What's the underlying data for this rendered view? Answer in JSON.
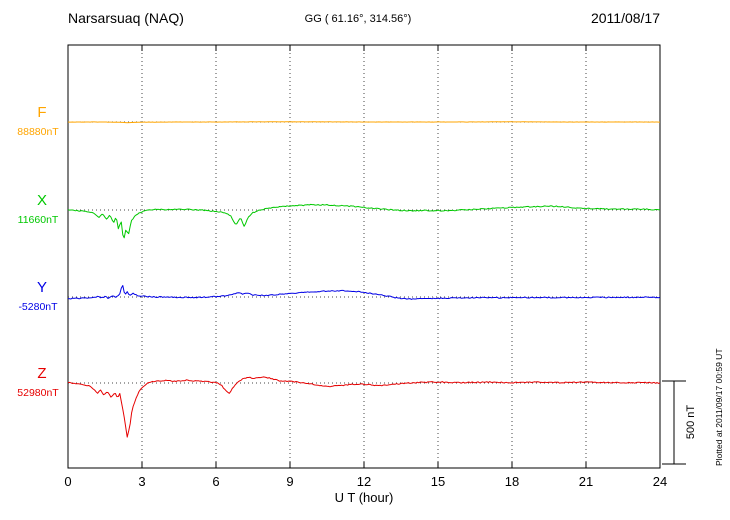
{
  "header": {
    "station": "Narsarsuaq (NAQ)",
    "coords": "GG ( 61.16°, 314.56°)",
    "date": "2011/08/17"
  },
  "footer": {
    "xlabel": "U T (hour)"
  },
  "side": {
    "scale_label": "500 nT",
    "plotted_note": "Plotted at 2011/09/17 00:59 UT"
  },
  "chart_data": {
    "type": "line",
    "title": "Narsarsuaq (NAQ) magnetogram 2011/08/17",
    "xlabel": "U T (hour)",
    "xlim": [
      0,
      24
    ],
    "x_ticks": [
      0,
      3,
      6,
      9,
      12,
      15,
      18,
      21,
      24
    ],
    "grid": "dotted vertical lines every 3 h; dotted horizontal baseline per component",
    "scale_bar_nT": 500,
    "legend_position": "left baselines",
    "series": [
      {
        "letter": "F",
        "value_label": "88880nT",
        "baseline_nT": 88880,
        "color": "#FFA500",
        "jitter_nT": 0.6,
        "points": [
          [
            0,
            0
          ],
          [
            1,
            0
          ],
          [
            2,
            -1
          ],
          [
            2.4,
            -4
          ],
          [
            3,
            -1
          ],
          [
            4,
            0
          ],
          [
            6,
            0
          ],
          [
            8,
            1
          ],
          [
            10,
            1
          ],
          [
            12,
            0
          ],
          [
            14,
            0
          ],
          [
            16,
            0
          ],
          [
            18,
            1
          ],
          [
            20,
            0
          ],
          [
            22,
            0
          ],
          [
            24,
            0
          ]
        ]
      },
      {
        "letter": "X",
        "value_label": "11660nT",
        "baseline_nT": 11660,
        "color": "#00C800",
        "jitter_nT": 3,
        "points": [
          [
            0,
            0
          ],
          [
            0.3,
            -3
          ],
          [
            0.6,
            -6
          ],
          [
            0.9,
            -12
          ],
          [
            1.1,
            -25
          ],
          [
            1.25,
            -45
          ],
          [
            1.4,
            -20
          ],
          [
            1.55,
            -55
          ],
          [
            1.7,
            -30
          ],
          [
            1.85,
            -80
          ],
          [
            1.95,
            -35
          ],
          [
            2.05,
            -120
          ],
          [
            2.15,
            -60
          ],
          [
            2.25,
            -190
          ],
          [
            2.35,
            -110
          ],
          [
            2.45,
            -150
          ],
          [
            2.55,
            -70
          ],
          [
            2.7,
            -40
          ],
          [
            2.85,
            -20
          ],
          [
            3,
            -10
          ],
          [
            3.3,
            0
          ],
          [
            3.6,
            5
          ],
          [
            4,
            2
          ],
          [
            4.5,
            6
          ],
          [
            5,
            2
          ],
          [
            5.5,
            -2
          ],
          [
            6,
            -8
          ],
          [
            6.3,
            -15
          ],
          [
            6.6,
            -35
          ],
          [
            6.8,
            -90
          ],
          [
            7,
            -45
          ],
          [
            7.15,
            -100
          ],
          [
            7.3,
            -45
          ],
          [
            7.5,
            -15
          ],
          [
            7.8,
            0
          ],
          [
            8.2,
            12
          ],
          [
            8.6,
            20
          ],
          [
            9,
            25
          ],
          [
            9.5,
            28
          ],
          [
            10,
            32
          ],
          [
            10.5,
            30
          ],
          [
            11,
            26
          ],
          [
            11.5,
            22
          ],
          [
            12,
            15
          ],
          [
            12.5,
            8
          ],
          [
            13,
            2
          ],
          [
            13.5,
            -2
          ],
          [
            14,
            -4
          ],
          [
            14.5,
            -3
          ],
          [
            15,
            -4
          ],
          [
            15.5,
            -2
          ],
          [
            16,
            0
          ],
          [
            16.5,
            4
          ],
          [
            17,
            8
          ],
          [
            17.5,
            12
          ],
          [
            18,
            15
          ],
          [
            18.5,
            18
          ],
          [
            19,
            20
          ],
          [
            19.5,
            24
          ],
          [
            20,
            20
          ],
          [
            20.5,
            14
          ],
          [
            21,
            10
          ],
          [
            21.5,
            8
          ],
          [
            22,
            6
          ],
          [
            22.5,
            6
          ],
          [
            23,
            6
          ],
          [
            23.5,
            4
          ],
          [
            24,
            2
          ]
        ]
      },
      {
        "letter": "Y",
        "value_label": "-5280nT",
        "baseline_nT": -5280,
        "color": "#0000E6",
        "jitter_nT": 3,
        "points": [
          [
            0,
            -10
          ],
          [
            0.4,
            -8
          ],
          [
            0.8,
            -6
          ],
          [
            1,
            -4
          ],
          [
            1.2,
            4
          ],
          [
            1.35,
            -6
          ],
          [
            1.5,
            2
          ],
          [
            1.65,
            -8
          ],
          [
            1.8,
            8
          ],
          [
            1.95,
            -2
          ],
          [
            2.1,
            18
          ],
          [
            2.2,
            80
          ],
          [
            2.3,
            12
          ],
          [
            2.4,
            30
          ],
          [
            2.5,
            10
          ],
          [
            2.65,
            22
          ],
          [
            2.8,
            8
          ],
          [
            3,
            6
          ],
          [
            3.3,
            2
          ],
          [
            3.6,
            0
          ],
          [
            4,
            1
          ],
          [
            4.5,
            -2
          ],
          [
            5,
            -3
          ],
          [
            5.5,
            -1
          ],
          [
            6,
            2
          ],
          [
            6.3,
            6
          ],
          [
            6.6,
            12
          ],
          [
            6.9,
            28
          ],
          [
            7.1,
            16
          ],
          [
            7.3,
            24
          ],
          [
            7.5,
            12
          ],
          [
            7.8,
            10
          ],
          [
            8.2,
            12
          ],
          [
            8.6,
            16
          ],
          [
            9,
            20
          ],
          [
            9.5,
            26
          ],
          [
            10,
            32
          ],
          [
            10.5,
            36
          ],
          [
            11,
            38
          ],
          [
            11.5,
            34
          ],
          [
            12,
            28
          ],
          [
            12.3,
            22
          ],
          [
            12.6,
            14
          ],
          [
            13,
            4
          ],
          [
            13.3,
            -4
          ],
          [
            13.6,
            -10
          ],
          [
            14,
            -12
          ],
          [
            14.5,
            -10
          ],
          [
            15,
            -8
          ],
          [
            15.5,
            -6
          ],
          [
            16,
            -5
          ],
          [
            16.5,
            -4
          ],
          [
            17,
            -4
          ],
          [
            17.5,
            -5
          ],
          [
            18,
            -4
          ],
          [
            18.5,
            -3
          ],
          [
            19,
            -4
          ],
          [
            19.5,
            -3
          ],
          [
            20,
            -4
          ],
          [
            20.5,
            -3
          ],
          [
            21,
            -3
          ],
          [
            21.5,
            -2
          ],
          [
            22,
            -3
          ],
          [
            22.5,
            -2
          ],
          [
            23,
            -2
          ],
          [
            23.5,
            -1
          ],
          [
            24,
            -2
          ]
        ]
      },
      {
        "letter": "Z",
        "value_label": "52980nT",
        "baseline_nT": 52980,
        "color": "#E60000",
        "jitter_nT": 3,
        "points": [
          [
            0,
            2
          ],
          [
            0.3,
            -2
          ],
          [
            0.6,
            -8
          ],
          [
            0.85,
            -18
          ],
          [
            1,
            -30
          ],
          [
            1.1,
            -45
          ],
          [
            1.2,
            -60
          ],
          [
            1.3,
            -40
          ],
          [
            1.45,
            -70
          ],
          [
            1.6,
            -50
          ],
          [
            1.75,
            -85
          ],
          [
            1.9,
            -55
          ],
          [
            2,
            -90
          ],
          [
            2.1,
            -65
          ],
          [
            2.2,
            -140
          ],
          [
            2.3,
            -220
          ],
          [
            2.4,
            -320
          ],
          [
            2.5,
            -260
          ],
          [
            2.6,
            -160
          ],
          [
            2.75,
            -90
          ],
          [
            2.9,
            -45
          ],
          [
            3.1,
            -15
          ],
          [
            3.3,
            5
          ],
          [
            3.6,
            12
          ],
          [
            4,
            16
          ],
          [
            4.4,
            10
          ],
          [
            4.8,
            16
          ],
          [
            5.2,
            12
          ],
          [
            5.6,
            8
          ],
          [
            6,
            4
          ],
          [
            6.2,
            -10
          ],
          [
            6.4,
            -45
          ],
          [
            6.55,
            -60
          ],
          [
            6.7,
            -25
          ],
          [
            6.9,
            5
          ],
          [
            7.1,
            25
          ],
          [
            7.3,
            35
          ],
          [
            7.5,
            28
          ],
          [
            7.7,
            32
          ],
          [
            8,
            36
          ],
          [
            8.3,
            24
          ],
          [
            8.6,
            12
          ],
          [
            9,
            10
          ],
          [
            9.4,
            4
          ],
          [
            9.8,
            -4
          ],
          [
            10.2,
            -14
          ],
          [
            10.6,
            -20
          ],
          [
            11,
            -16
          ],
          [
            11.4,
            -10
          ],
          [
            11.8,
            -6
          ],
          [
            12.2,
            -10
          ],
          [
            12.6,
            -16
          ],
          [
            13,
            -10
          ],
          [
            13.5,
            -4
          ],
          [
            14,
            2
          ],
          [
            14.5,
            4
          ],
          [
            15,
            6
          ],
          [
            15.5,
            4
          ],
          [
            16,
            2
          ],
          [
            16.5,
            4
          ],
          [
            17,
            6
          ],
          [
            17.5,
            4
          ],
          [
            18,
            2
          ],
          [
            18.5,
            4
          ],
          [
            19,
            6
          ],
          [
            19.5,
            4
          ],
          [
            20,
            2
          ],
          [
            20.5,
            4
          ],
          [
            21,
            6
          ],
          [
            21.5,
            4
          ],
          [
            22,
            2
          ],
          [
            22.5,
            2
          ],
          [
            23,
            2
          ],
          [
            23.5,
            2
          ],
          [
            24,
            0
          ]
        ]
      }
    ]
  }
}
